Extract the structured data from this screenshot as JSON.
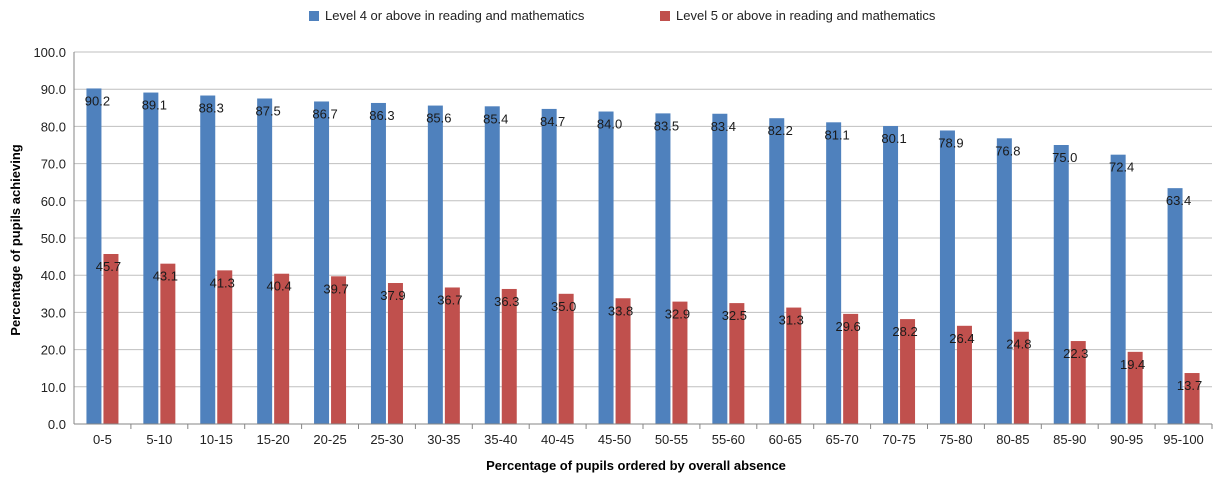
{
  "chart_data": {
    "type": "bar",
    "xlabel": "Percentage of pupils ordered by overall absence",
    "ylabel": "Percentage of pupils achieving",
    "ylim": [
      0,
      100
    ],
    "yticks": [
      "0.0",
      "10.0",
      "20.0",
      "30.0",
      "40.0",
      "50.0",
      "60.0",
      "70.0",
      "80.0",
      "90.0",
      "100.0"
    ],
    "grid": true,
    "legend_position": "top",
    "categories": [
      "0-5",
      "5-10",
      "10-15",
      "15-20",
      "20-25",
      "25-30",
      "30-35",
      "35-40",
      "40-45",
      "45-50",
      "50-55",
      "55-60",
      "60-65",
      "65-70",
      "70-75",
      "75-80",
      "80-85",
      "85-90",
      "90-95",
      "95-100"
    ],
    "series": [
      {
        "name": "Level 4 or above in reading and mathematics",
        "color": "#4F81BD",
        "values": [
          90.2,
          89.1,
          88.3,
          87.5,
          86.7,
          86.3,
          85.6,
          85.4,
          84.7,
          84.0,
          83.5,
          83.4,
          82.2,
          81.1,
          80.1,
          78.9,
          76.8,
          75.0,
          72.4,
          63.4
        ],
        "labels": [
          "90.2",
          "89.1",
          "88.3",
          "87.5",
          "86.7",
          "86.3",
          "85.6",
          "85.4",
          "84.7",
          "84.0",
          "83.5",
          "83.4",
          "82.2",
          "81.1",
          "80.1",
          "78.9",
          "76.8",
          "75.0",
          "72.4",
          "63.4"
        ]
      },
      {
        "name": "Level 5 or above in reading and mathematics",
        "color": "#C0504D",
        "values": [
          45.7,
          43.1,
          41.3,
          40.4,
          39.7,
          37.9,
          36.7,
          36.3,
          35.0,
          33.8,
          32.9,
          32.5,
          31.3,
          29.6,
          28.2,
          26.4,
          24.8,
          22.3,
          19.4,
          13.7
        ],
        "labels": [
          "45.7",
          "43.1",
          "41.3",
          "40.4",
          "39.7",
          "37.9",
          "36.7",
          "36.3",
          "35.0",
          "33.8",
          "32.9",
          "32.5",
          "31.3",
          "29.6",
          "28.2",
          "26.4",
          "24.8",
          "22.3",
          "19.4",
          "13.7"
        ]
      }
    ]
  }
}
